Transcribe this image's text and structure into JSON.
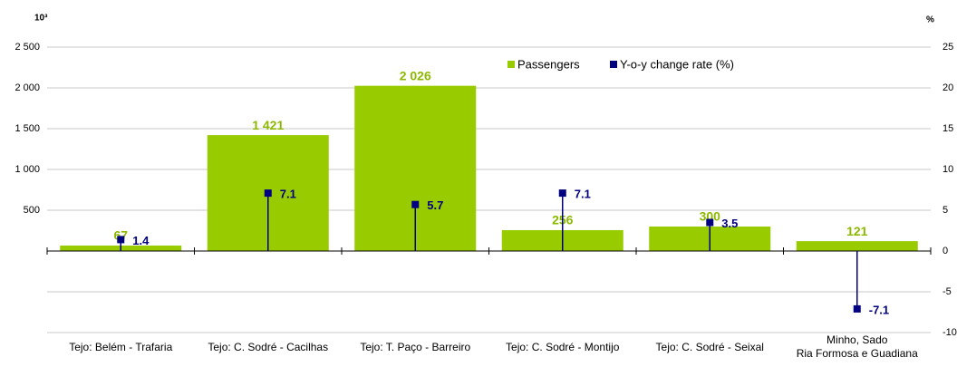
{
  "chart_data": {
    "type": "bar-line",
    "y_unit": "10³",
    "y2_unit": "%",
    "categories": [
      "Tejo: Belém - Trafaria",
      "Tejo: C. Sodré - Cacilhas",
      "Tejo: T. Paço - Barreiro",
      "Tejo: C. Sodré - Montijo",
      "Tejo: C. Sodré - Seixal",
      "Minho, Sado\nRia Formosa e Guadiana"
    ],
    "series": [
      {
        "name": "Passengers",
        "color": "#99cc00",
        "values": [
          67,
          1421,
          2026,
          256,
          300,
          121
        ],
        "value_labels": [
          "67",
          "1 421",
          "2 026",
          "256",
          "300",
          "121"
        ]
      },
      {
        "name": "Y-o-y change rate (%)",
        "color": "#000080",
        "axis": "y2",
        "values": [
          1.4,
          7.1,
          5.7,
          7.1,
          3.5,
          -7.1
        ]
      }
    ],
    "ylim": [
      -1000,
      2500
    ],
    "yticks": [
      500,
      {
        "value": 1000,
        "label": "1 000"
      },
      {
        "value": 1500,
        "label": "1 500"
      },
      {
        "value": 2000,
        "label": "2 000"
      },
      {
        "value": 2500,
        "label": "2 500"
      }
    ],
    "y2lim": [
      -10,
      25
    ],
    "y2ticks": [
      -10,
      -5,
      0,
      5,
      10,
      15,
      20,
      25
    ],
    "grid": true
  }
}
